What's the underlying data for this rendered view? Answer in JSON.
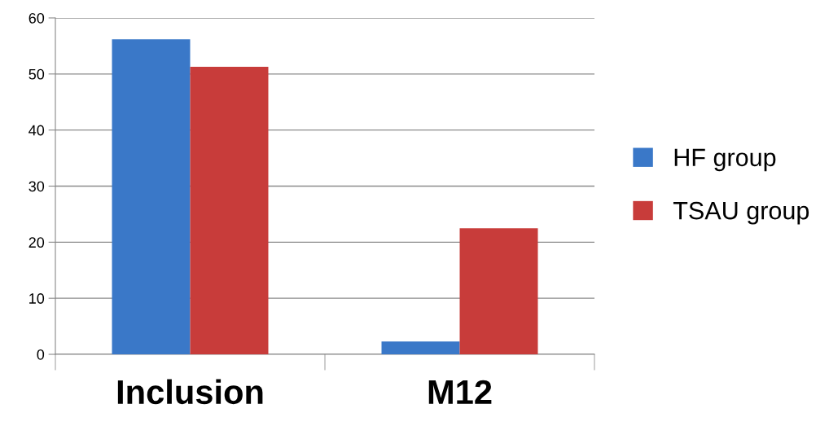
{
  "chart_data": {
    "type": "bar",
    "categories": [
      "Inclusion",
      "M12"
    ],
    "series": [
      {
        "name": "HF group",
        "color": "#3a78c8",
        "values": [
          56.2,
          2.3
        ]
      },
      {
        "name": "TSAU group",
        "color": "#c83c3a",
        "values": [
          51.3,
          22.5
        ]
      }
    ],
    "ylim": [
      0,
      60
    ],
    "yticks": [
      0,
      10,
      20,
      30,
      40,
      50,
      60
    ],
    "grid": "y",
    "legend": "right"
  }
}
